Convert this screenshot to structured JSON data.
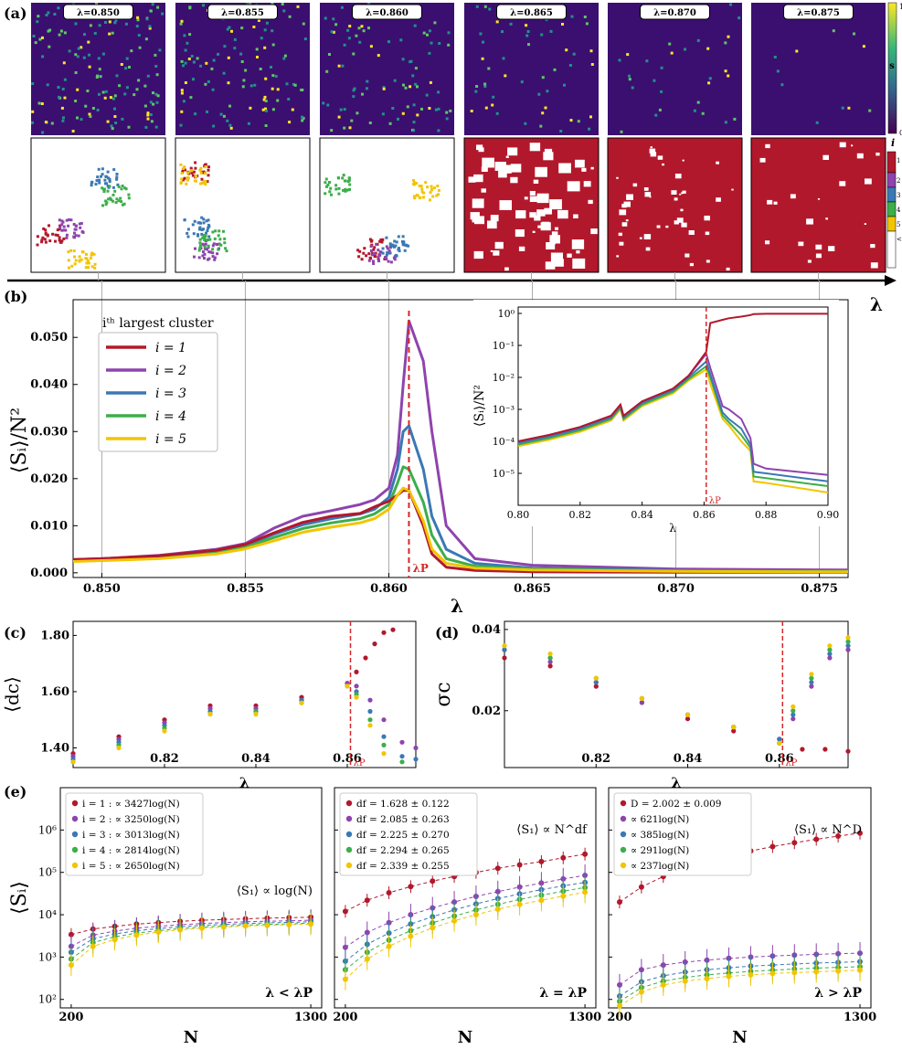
{
  "panels": {
    "a": "(a)",
    "b": "(b)",
    "c": "(c)",
    "d": "(d)",
    "e": "(e)"
  },
  "colors": {
    "i1": "#b2182b",
    "i2": "#8e44ad",
    "i3": "#3b78b4",
    "i4": "#3cae4a",
    "i5": "#f2c500",
    "sbg": "#3b0f70",
    "lam_p_line": "#d62728"
  },
  "snapshots": {
    "lambdas": [
      "λ=0.850",
      "λ=0.855",
      "λ=0.860",
      "λ=0.865",
      "λ=0.870",
      "λ=0.875"
    ],
    "lambda_values": [
      0.85,
      0.855,
      0.86,
      0.865,
      0.87,
      0.875
    ],
    "s_colorbar": {
      "label": "s",
      "ticks": [
        "1",
        "0"
      ]
    },
    "i_colorbar": {
      "label": "i",
      "ticks": [
        "1",
        "2",
        "3",
        "4",
        "5",
        "<5"
      ]
    },
    "axis_label": "λ"
  },
  "chart_data": [
    {
      "id": "b",
      "type": "line",
      "ylabel": "⟨Sᵢ⟩/N²",
      "xlabel": "λ",
      "xlim": [
        0.849,
        0.876
      ],
      "ylim": [
        -0.001,
        0.058
      ],
      "xticks": [
        "0.850",
        "0.855",
        "0.860",
        "0.865",
        "0.870",
        "0.875"
      ],
      "yticks": [
        "0.000",
        "0.010",
        "0.020",
        "0.030",
        "0.040",
        "0.050"
      ],
      "legend_title": "iᵗʰ largest cluster",
      "legend_entries": [
        "i = 1",
        "i = 2",
        "i = 3",
        "i = 4",
        "i = 5"
      ],
      "lambda_p": 0.8607,
      "lambda_p_label": "λP",
      "x": [
        0.849,
        0.85,
        0.852,
        0.854,
        0.855,
        0.856,
        0.857,
        0.858,
        0.859,
        0.8595,
        0.86,
        0.8603,
        0.8605,
        0.8607,
        0.8612,
        0.8615,
        0.862,
        0.863,
        0.865,
        0.87,
        0.876
      ],
      "series": [
        {
          "name": "i = 1",
          "values": [
            0.0028,
            0.003,
            0.0036,
            0.0048,
            0.006,
            0.0085,
            0.0107,
            0.012,
            0.0126,
            0.014,
            0.0152,
            0.0165,
            0.0175,
            0.0175,
            0.01,
            0.004,
            0.0012,
            0.0005,
            0.0002,
            0.0001,
            0.0001
          ]
        },
        {
          "name": "i = 2",
          "values": [
            0.0028,
            0.003,
            0.0037,
            0.005,
            0.0062,
            0.0095,
            0.012,
            0.0132,
            0.0145,
            0.0155,
            0.018,
            0.025,
            0.04,
            0.0535,
            0.045,
            0.03,
            0.01,
            0.003,
            0.0016,
            0.0008,
            0.0006
          ]
        },
        {
          "name": "i = 3",
          "values": [
            0.0027,
            0.0029,
            0.0035,
            0.0046,
            0.0058,
            0.0082,
            0.0102,
            0.0115,
            0.0125,
            0.0135,
            0.016,
            0.022,
            0.03,
            0.0312,
            0.022,
            0.012,
            0.005,
            0.002,
            0.001,
            0.0005,
            0.0004
          ]
        },
        {
          "name": "i = 4",
          "values": [
            0.0026,
            0.0028,
            0.0033,
            0.0043,
            0.0054,
            0.0075,
            0.0094,
            0.0106,
            0.0115,
            0.0125,
            0.0145,
            0.019,
            0.0225,
            0.022,
            0.015,
            0.008,
            0.003,
            0.0014,
            0.0008,
            0.0004,
            0.0003
          ]
        },
        {
          "name": "i = 5",
          "values": [
            0.0024,
            0.0026,
            0.003,
            0.004,
            0.0051,
            0.0068,
            0.0086,
            0.0097,
            0.0106,
            0.0115,
            0.0135,
            0.0165,
            0.018,
            0.0175,
            0.011,
            0.005,
            0.002,
            0.001,
            0.0006,
            0.0003,
            0.0002
          ]
        }
      ]
    },
    {
      "id": "b-inset",
      "type": "line",
      "scale": "log",
      "ylabel": "⟨Sᵢ⟩/N²",
      "xlabel": "λ",
      "xlim": [
        0.8,
        0.9
      ],
      "ylim_log10": [
        -6,
        0.2
      ],
      "xticks": [
        "0.80",
        "0.82",
        "0.84",
        "0.86",
        "0.88",
        "0.90"
      ],
      "yticks": [
        "10⁰",
        "10⁻¹",
        "10⁻²",
        "10⁻³",
        "10⁻⁴",
        "10⁻⁵"
      ],
      "lambda_p": 0.8607,
      "lambda_p_label": "λP",
      "x": [
        0.8,
        0.81,
        0.82,
        0.83,
        0.833,
        0.834,
        0.84,
        0.85,
        0.855,
        0.8607,
        0.862,
        0.866,
        0.868,
        0.872,
        0.875,
        0.876,
        0.88,
        0.9
      ],
      "series": [
        {
          "name": "i = 1",
          "values": [
            -4.0,
            -3.8,
            -3.55,
            -3.2,
            -2.85,
            -3.2,
            -2.75,
            -2.35,
            -1.95,
            -1.2,
            -0.3,
            -0.2,
            -0.15,
            -0.1,
            -0.05,
            -0.02,
            -0.01,
            -0.01
          ]
        },
        {
          "name": "i = 2",
          "values": [
            -4.0,
            -3.8,
            -3.55,
            -3.2,
            -2.85,
            -3.2,
            -2.75,
            -2.35,
            -1.95,
            -1.27,
            -1.7,
            -2.9,
            -3.0,
            -3.3,
            -3.9,
            -4.7,
            -4.85,
            -5.05
          ]
        },
        {
          "name": "i = 3",
          "values": [
            -4.05,
            -3.85,
            -3.6,
            -3.25,
            -2.9,
            -3.25,
            -2.8,
            -2.4,
            -2.0,
            -1.5,
            -1.9,
            -3.1,
            -3.3,
            -3.6,
            -4.1,
            -4.95,
            -5.0,
            -5.25
          ]
        },
        {
          "name": "i = 4",
          "values": [
            -4.1,
            -3.9,
            -3.65,
            -3.3,
            -2.95,
            -3.3,
            -2.85,
            -2.45,
            -2.05,
            -1.65,
            -2.0,
            -3.2,
            -3.4,
            -3.8,
            -4.2,
            -5.1,
            -5.15,
            -5.4
          ]
        },
        {
          "name": "i = 5",
          "values": [
            -4.15,
            -3.95,
            -3.7,
            -3.35,
            -3.0,
            -3.35,
            -2.9,
            -2.5,
            -2.1,
            -1.75,
            -2.2,
            -3.3,
            -3.5,
            -4.0,
            -4.3,
            -5.25,
            -5.3,
            -5.6
          ]
        }
      ]
    },
    {
      "id": "c",
      "type": "scatter",
      "ylabel": "⟨dc⟩",
      "xlabel": "λ",
      "xlim": [
        0.8,
        0.875
      ],
      "ylim": [
        1.33,
        1.85
      ],
      "xticks": [
        "0.82",
        "0.84",
        "0.86"
      ],
      "yticks": [
        "1.40",
        "1.60",
        "1.80"
      ],
      "lambda_p": 0.8607,
      "lambda_p_label": "λP",
      "series": [
        {
          "name": "i = 1",
          "x": [
            0.8,
            0.81,
            0.82,
            0.83,
            0.84,
            0.85,
            0.86,
            0.862,
            0.864,
            0.866,
            0.868,
            0.87
          ],
          "values": [
            1.38,
            1.44,
            1.5,
            1.55,
            1.55,
            1.58,
            1.63,
            1.67,
            1.72,
            1.77,
            1.81,
            1.82
          ]
        },
        {
          "name": "i = 2",
          "x": [
            0.8,
            0.81,
            0.82,
            0.83,
            0.84,
            0.85,
            0.86,
            0.862,
            0.865,
            0.868,
            0.872,
            0.875
          ],
          "values": [
            1.37,
            1.43,
            1.49,
            1.54,
            1.54,
            1.57,
            1.63,
            1.62,
            1.57,
            1.5,
            1.42,
            1.4
          ]
        },
        {
          "name": "i = 3",
          "x": [
            0.8,
            0.81,
            0.82,
            0.83,
            0.84,
            0.85,
            0.86,
            0.862,
            0.865,
            0.868,
            0.872,
            0.875
          ],
          "values": [
            1.36,
            1.42,
            1.48,
            1.53,
            1.53,
            1.57,
            1.62,
            1.6,
            1.53,
            1.44,
            1.37,
            1.36
          ]
        },
        {
          "name": "i = 4",
          "x": [
            0.8,
            0.81,
            0.82,
            0.83,
            0.84,
            0.85,
            0.86,
            0.862,
            0.865,
            0.868,
            0.872
          ],
          "values": [
            1.35,
            1.41,
            1.47,
            1.52,
            1.53,
            1.56,
            1.62,
            1.59,
            1.5,
            1.41,
            1.35
          ]
        },
        {
          "name": "i = 5",
          "x": [
            0.8,
            0.81,
            0.82,
            0.83,
            0.84,
            0.85,
            0.86,
            0.862,
            0.865,
            0.868
          ],
          "values": [
            1.35,
            1.4,
            1.46,
            1.52,
            1.52,
            1.56,
            1.62,
            1.58,
            1.48,
            1.38
          ]
        }
      ]
    },
    {
      "id": "d",
      "type": "scatter",
      "ylabel": "σc",
      "xlabel": "λ",
      "xlim": [
        0.8,
        0.875
      ],
      "ylim": [
        0.006,
        0.042
      ],
      "xticks": [
        "0.82",
        "0.84",
        "0.86"
      ],
      "yticks": [
        "0.02",
        "0.04"
      ],
      "lambda_p": 0.8607,
      "lambda_p_label": "λP",
      "series": [
        {
          "name": "i = 1",
          "x": [
            0.8,
            0.81,
            0.82,
            0.83,
            0.84,
            0.85,
            0.86,
            0.865,
            0.87,
            0.875
          ],
          "values": [
            0.033,
            0.031,
            0.026,
            0.022,
            0.018,
            0.015,
            0.012,
            0.0105,
            0.0105,
            0.01
          ]
        },
        {
          "name": "i = 2",
          "x": [
            0.8,
            0.81,
            0.82,
            0.83,
            0.84,
            0.85,
            0.86,
            0.863,
            0.867,
            0.871,
            0.875
          ],
          "values": [
            0.035,
            0.032,
            0.027,
            0.022,
            0.019,
            0.016,
            0.013,
            0.018,
            0.026,
            0.033,
            0.035
          ]
        },
        {
          "name": "i = 3",
          "x": [
            0.8,
            0.81,
            0.82,
            0.83,
            0.84,
            0.85,
            0.86,
            0.863,
            0.867,
            0.871,
            0.875
          ],
          "values": [
            0.035,
            0.033,
            0.027,
            0.023,
            0.019,
            0.016,
            0.013,
            0.019,
            0.027,
            0.034,
            0.036
          ]
        },
        {
          "name": "i = 4",
          "x": [
            0.8,
            0.81,
            0.82,
            0.83,
            0.84,
            0.85,
            0.86,
            0.863,
            0.867,
            0.871,
            0.875
          ],
          "values": [
            0.036,
            0.033,
            0.028,
            0.023,
            0.019,
            0.016,
            0.012,
            0.02,
            0.028,
            0.035,
            0.037
          ]
        },
        {
          "name": "i = 5",
          "x": [
            0.8,
            0.81,
            0.82,
            0.83,
            0.84,
            0.85,
            0.86,
            0.863,
            0.867,
            0.871,
            0.875
          ],
          "values": [
            0.036,
            0.034,
            0.028,
            0.023,
            0.019,
            0.016,
            0.012,
            0.021,
            0.029,
            0.036,
            0.038
          ]
        }
      ]
    },
    {
      "id": "e1",
      "type": "scatter",
      "scale": "log-y",
      "ylabel": "⟨Sᵢ⟩",
      "xlabel": "N",
      "xlim": [
        150,
        1350
      ],
      "ylim_log10": [
        1.8,
        7
      ],
      "xticks": [
        "200",
        "1300"
      ],
      "yticks": [
        "10⁶",
        "10⁵",
        "10⁴",
        "10³",
        "10²"
      ],
      "legend_entries": [
        "i = 1 : ∝ 3427log(N)",
        "i = 2 : ∝ 3250log(N)",
        "i = 3 : ∝ 3013log(N)",
        "i = 4 : ∝ 2814log(N)",
        "i = 5 : ∝ 2650log(N)"
      ],
      "annotation": "⟨S₁⟩ ∝ log(N)",
      "regime": "λ < λP",
      "x": [
        200,
        300,
        400,
        500,
        600,
        700,
        800,
        900,
        1000,
        1100,
        1200,
        1300
      ],
      "series": [
        {
          "name": "i = 1",
          "values": [
            3400,
            4600,
            5300,
            6000,
            6500,
            7000,
            7400,
            7700,
            8000,
            8300,
            8500,
            8700
          ]
        },
        {
          "name": "i = 2",
          "values": [
            1800,
            3300,
            4100,
            4800,
            5300,
            5800,
            6200,
            6500,
            6800,
            7000,
            7200,
            7400
          ]
        },
        {
          "name": "i = 3",
          "values": [
            1300,
            2700,
            3500,
            4200,
            4700,
            5200,
            5600,
            5900,
            6200,
            6400,
            6600,
            6800
          ]
        },
        {
          "name": "i = 4",
          "values": [
            900,
            2200,
            3000,
            3700,
            4200,
            4700,
            5100,
            5400,
            5700,
            5900,
            6100,
            6300
          ]
        },
        {
          "name": "i = 5",
          "values": [
            650,
            1800,
            2600,
            3300,
            3900,
            4400,
            4800,
            5100,
            5400,
            5600,
            5800,
            6000
          ]
        }
      ]
    },
    {
      "id": "e2",
      "type": "scatter",
      "scale": "log-y",
      "xlabel": "N",
      "xlim": [
        150,
        1350
      ],
      "ylim_log10": [
        1.8,
        7
      ],
      "xticks": [
        "200",
        "1300"
      ],
      "legend_entries": [
        "df = 1.628 ± 0.122",
        "df = 2.085 ± 0.263",
        "df = 2.225 ± 0.270",
        "df = 2.294 ± 0.265",
        "df = 2.339 ± 0.255"
      ],
      "annotation": "⟨S₁⟩ ∝ N^df",
      "regime": "λ = λP",
      "x": [
        200,
        300,
        400,
        500,
        600,
        700,
        800,
        900,
        1000,
        1100,
        1200,
        1300
      ],
      "series": [
        {
          "name": "i = 1",
          "values": [
            12000,
            22000,
            33000,
            46000,
            62000,
            80000,
            100000,
            125000,
            150000,
            180000,
            220000,
            270000
          ]
        },
        {
          "name": "i = 2",
          "values": [
            1700,
            3800,
            6500,
            10000,
            14500,
            20000,
            27000,
            35000,
            45000,
            56000,
            70000,
            85000
          ]
        },
        {
          "name": "i = 3",
          "values": [
            800,
            2000,
            3700,
            6000,
            9000,
            13000,
            18000,
            24000,
            31000,
            39000,
            48000,
            58000
          ]
        },
        {
          "name": "i = 4",
          "values": [
            500,
            1300,
            2500,
            4200,
            6400,
            9300,
            13000,
            17500,
            23000,
            29000,
            36000,
            44000
          ]
        },
        {
          "name": "i = 5",
          "values": [
            300,
            900,
            1800,
            3100,
            4900,
            7200,
            10000,
            13500,
            17500,
            22000,
            27500,
            34000
          ]
        }
      ]
    },
    {
      "id": "e3",
      "type": "scatter",
      "scale": "log-y",
      "xlabel": "N",
      "xlim": [
        150,
        1350
      ],
      "ylim_log10": [
        1.8,
        7
      ],
      "xticks": [
        "200",
        "1300"
      ],
      "legend_entries": [
        "D = 2.002 ± 0.009",
        "∝ 621log(N)",
        "∝ 385log(N)",
        "∝ 291log(N)",
        "∝ 237log(N)"
      ],
      "annotation": "⟨S₁⟩ ∝ N^D",
      "regime": "λ > λP",
      "x": [
        200,
        300,
        400,
        500,
        600,
        700,
        800,
        900,
        1000,
        1100,
        1200,
        1300
      ],
      "series": [
        {
          "name": "i = 1",
          "values": [
            20000,
            45000,
            80000,
            125000,
            180000,
            245000,
            320000,
            405000,
            500000,
            605000,
            720000,
            845000
          ]
        },
        {
          "name": "i = 2",
          "values": [
            220,
            500,
            650,
            760,
            850,
            930,
            1000,
            1060,
            1110,
            1160,
            1200,
            1240
          ]
        },
        {
          "name": "i = 3",
          "values": [
            120,
            260,
            360,
            440,
            500,
            560,
            610,
            650,
            690,
            720,
            750,
            780
          ]
        },
        {
          "name": "i = 4",
          "values": [
            90,
            190,
            270,
            330,
            380,
            420,
            460,
            490,
            520,
            550,
            570,
            590
          ]
        },
        {
          "name": "i = 5",
          "values": [
            70,
            150,
            220,
            270,
            310,
            350,
            380,
            410,
            430,
            450,
            470,
            490
          ]
        }
      ]
    }
  ]
}
